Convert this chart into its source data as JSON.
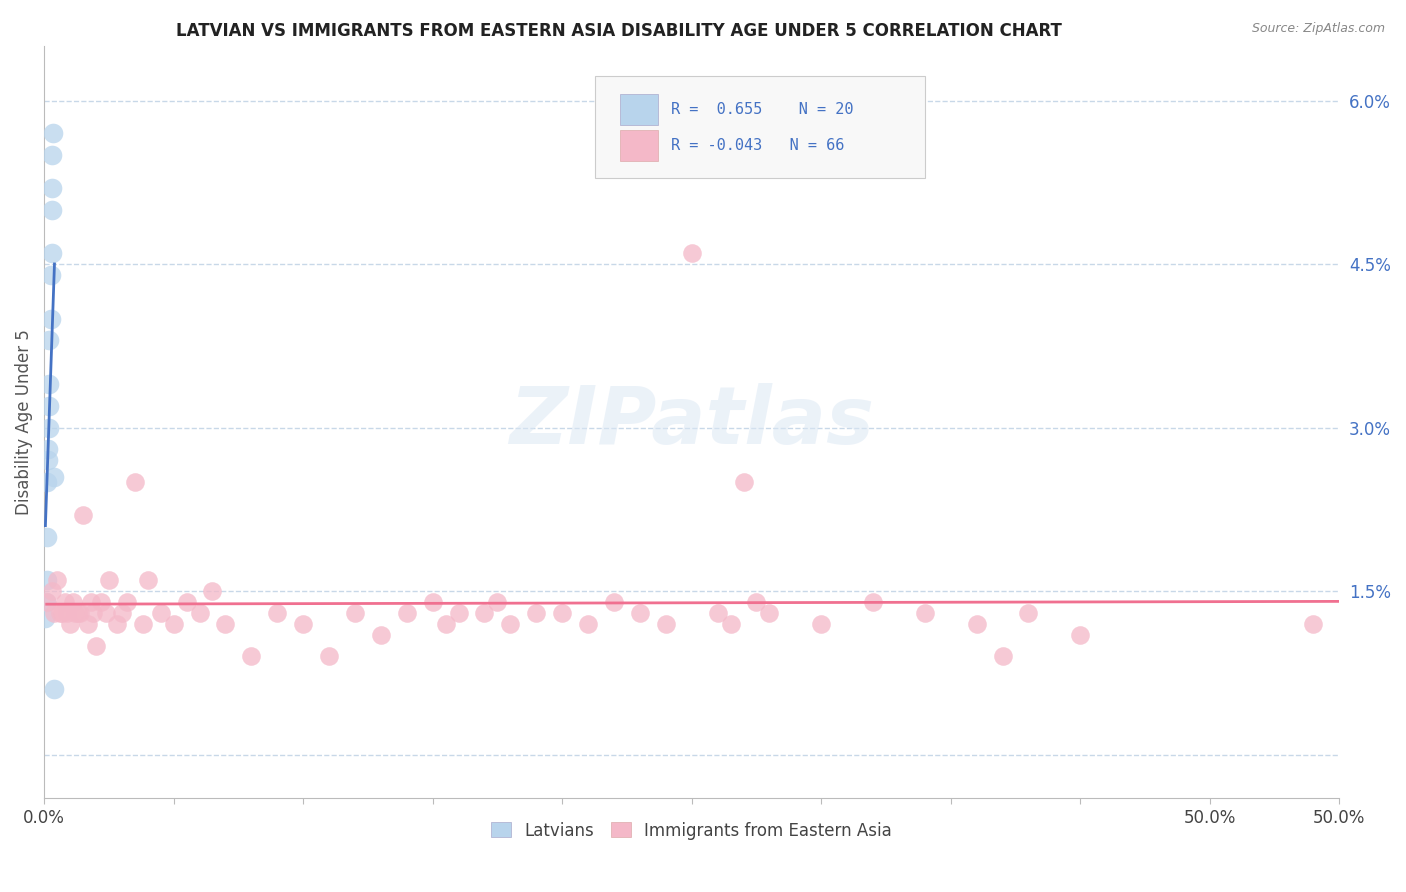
{
  "title": "LATVIAN VS IMMIGRANTS FROM EASTERN ASIA DISABILITY AGE UNDER 5 CORRELATION CHART",
  "source": "Source: ZipAtlas.com",
  "ylabel": "Disability Age Under 5",
  "xlim": [
    0.0,
    0.5
  ],
  "ylim": [
    -0.004,
    0.065
  ],
  "xtick_positions": [
    0.0,
    0.05,
    0.1,
    0.15,
    0.2,
    0.25,
    0.3,
    0.35,
    0.4,
    0.45,
    0.5
  ],
  "xtick_labels_show": {
    "0.0": "0.0%",
    "0.5": "50.0%"
  },
  "yticks_right": [
    0.015,
    0.03,
    0.045,
    0.06
  ],
  "yticks_right_labels": [
    "1.5%",
    "3.0%",
    "4.5%",
    "6.0%"
  ],
  "yticks_grid": [
    0.0,
    0.015,
    0.03,
    0.045,
    0.06
  ],
  "legend_labels": [
    "Latvians",
    "Immigrants from Eastern Asia"
  ],
  "latvian_R": 0.655,
  "latvian_N": 20,
  "immigrant_R": -0.043,
  "immigrant_N": 66,
  "latvian_color": "#b8d4ec",
  "latvian_line_color": "#4472c4",
  "immigrant_color": "#f4b8c8",
  "immigrant_line_color": "#f07090",
  "background_color": "#ffffff",
  "grid_color": "#c8d8e8",
  "latvian_x": [
    0.0005,
    0.0008,
    0.001,
    0.001,
    0.001,
    0.0015,
    0.0015,
    0.002,
    0.002,
    0.002,
    0.002,
    0.0025,
    0.0025,
    0.003,
    0.003,
    0.003,
    0.003,
    0.0035,
    0.004,
    0.004
  ],
  "latvian_y": [
    0.0125,
    0.014,
    0.016,
    0.02,
    0.025,
    0.027,
    0.028,
    0.03,
    0.032,
    0.034,
    0.038,
    0.04,
    0.044,
    0.046,
    0.05,
    0.052,
    0.055,
    0.057,
    0.0255,
    0.006
  ],
  "immigrant_x": [
    0.001,
    0.003,
    0.004,
    0.005,
    0.006,
    0.007,
    0.008,
    0.009,
    0.01,
    0.011,
    0.012,
    0.013,
    0.014,
    0.015,
    0.017,
    0.018,
    0.019,
    0.02,
    0.022,
    0.024,
    0.025,
    0.028,
    0.03,
    0.032,
    0.035,
    0.038,
    0.04,
    0.045,
    0.05,
    0.055,
    0.06,
    0.065,
    0.07,
    0.08,
    0.09,
    0.1,
    0.11,
    0.12,
    0.13,
    0.14,
    0.15,
    0.155,
    0.16,
    0.17,
    0.175,
    0.18,
    0.19,
    0.2,
    0.21,
    0.22,
    0.23,
    0.24,
    0.25,
    0.26,
    0.265,
    0.27,
    0.275,
    0.28,
    0.3,
    0.32,
    0.34,
    0.36,
    0.37,
    0.38,
    0.4,
    0.49
  ],
  "immigrant_y": [
    0.014,
    0.015,
    0.013,
    0.016,
    0.013,
    0.013,
    0.014,
    0.013,
    0.012,
    0.014,
    0.013,
    0.013,
    0.013,
    0.022,
    0.012,
    0.014,
    0.013,
    0.01,
    0.014,
    0.013,
    0.016,
    0.012,
    0.013,
    0.014,
    0.025,
    0.012,
    0.016,
    0.013,
    0.012,
    0.014,
    0.013,
    0.015,
    0.012,
    0.009,
    0.013,
    0.012,
    0.009,
    0.013,
    0.011,
    0.013,
    0.014,
    0.012,
    0.013,
    0.013,
    0.014,
    0.012,
    0.013,
    0.013,
    0.012,
    0.014,
    0.013,
    0.012,
    0.046,
    0.013,
    0.012,
    0.025,
    0.014,
    0.013,
    0.012,
    0.014,
    0.013,
    0.012,
    0.009,
    0.013,
    0.011,
    0.012
  ]
}
